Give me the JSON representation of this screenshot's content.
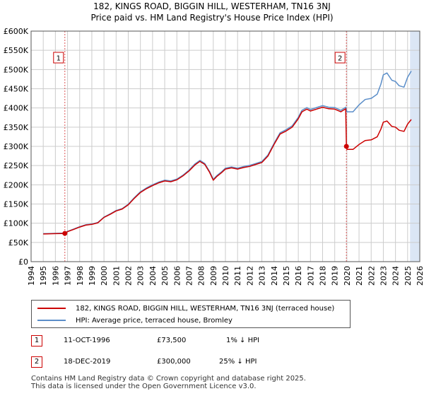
{
  "title_line1": "182, KINGS ROAD, BIGGIN HILL, WESTERHAM, TN16 3NJ",
  "title_line2": "Price paid vs. HM Land Registry's House Price Index (HPI)",
  "colors": {
    "property": "#cc0000",
    "hpi": "#5b8ec9",
    "shade": "#dbe6f5",
    "grid": "#cccccc",
    "vline": "#dd5555"
  },
  "chart_data": {
    "type": "line",
    "title": "182, KINGS ROAD, BIGGIN HILL, WESTERHAM, TN16 3NJ",
    "subtitle": "Price paid vs. HM Land Registry's House Price Index (HPI)",
    "xlabel": "",
    "ylabel": "",
    "xlim": [
      1994,
      2026
    ],
    "ylim": [
      0,
      600000
    ],
    "yticks": [
      0,
      50000,
      100000,
      150000,
      200000,
      250000,
      300000,
      350000,
      400000,
      450000,
      500000,
      550000,
      600000
    ],
    "ytick_labels": [
      "£0",
      "£50K",
      "£100K",
      "£150K",
      "£200K",
      "£250K",
      "£300K",
      "£350K",
      "£400K",
      "£450K",
      "£500K",
      "£550K",
      "£600K"
    ],
    "xticks": [
      1994,
      1995,
      1996,
      1997,
      1998,
      1999,
      2000,
      2001,
      2002,
      2003,
      2004,
      2005,
      2006,
      2007,
      2008,
      2009,
      2010,
      2011,
      2012,
      2013,
      2014,
      2015,
      2016,
      2017,
      2018,
      2019,
      2020,
      2021,
      2022,
      2023,
      2024,
      2025,
      2026
    ],
    "xtick_labels": [
      "1994",
      "1995",
      "1996",
      "1997",
      "1998",
      "1999",
      "2000",
      "2001",
      "2002",
      "2003",
      "2004",
      "2005",
      "2006",
      "2007",
      "2008",
      "2009",
      "2010",
      "2011",
      "2012",
      "2013",
      "2014",
      "2015",
      "2016",
      "2017",
      "2018",
      "2019",
      "2020",
      "2021",
      "2022",
      "2023",
      "2024",
      "2025",
      "2026"
    ],
    "grid": true,
    "shaded_range": [
      2025.2,
      2026
    ],
    "series": [
      {
        "name": "182, KINGS ROAD, BIGGIN HILL, WESTERHAM, TN16 3NJ (terraced house)",
        "x": [
          1995.0,
          1995.5,
          1996.0,
          1996.5,
          1996.78,
          1997.0,
          1997.5,
          1998.0,
          1998.5,
          1999.0,
          1999.5,
          2000.0,
          2000.5,
          2001.0,
          2001.5,
          2002.0,
          2002.5,
          2003.0,
          2003.5,
          2004.0,
          2004.5,
          2005.0,
          2005.5,
          2006.0,
          2006.5,
          2007.0,
          2007.5,
          2007.9,
          2008.3,
          2008.7,
          2009.0,
          2009.3,
          2009.7,
          2010.0,
          2010.5,
          2011.0,
          2011.5,
          2012.0,
          2012.5,
          2013.0,
          2013.5,
          2014.0,
          2014.5,
          2015.0,
          2015.5,
          2016.0,
          2016.3,
          2016.7,
          2017.0,
          2017.5,
          2018.0,
          2018.5,
          2019.0,
          2019.5,
          2019.9,
          2019.96,
          2020.0,
          2020.5,
          2021.0,
          2021.5,
          2022.0,
          2022.5,
          2022.8,
          2023.0,
          2023.3,
          2023.7,
          2024.0,
          2024.3,
          2024.7,
          2025.0,
          2025.3
        ],
        "values": [
          72000,
          72500,
          72800,
          73200,
          73500,
          78000,
          84000,
          90000,
          95000,
          97000,
          101000,
          115000,
          123000,
          132000,
          137000,
          148000,
          165000,
          180000,
          190000,
          198000,
          205000,
          210000,
          208000,
          213000,
          223000,
          236000,
          252000,
          261000,
          253000,
          232000,
          212000,
          222000,
          232000,
          241000,
          244000,
          241000,
          245000,
          248000,
          253000,
          258000,
          275000,
          305000,
          332000,
          340000,
          350000,
          372000,
          390000,
          397000,
          392000,
          397000,
          402000,
          398000,
          397000,
          390000,
          398000,
          300000,
          292000,
          292000,
          305000,
          315000,
          317000,
          325000,
          345000,
          363000,
          366000,
          352000,
          350000,
          342000,
          339000,
          358000,
          370000
        ]
      },
      {
        "name": "HPI: Average price, terraced house, Bromley",
        "x": [
          1995.0,
          1995.5,
          1996.0,
          1996.5,
          1996.78,
          1997.0,
          1997.5,
          1998.0,
          1998.5,
          1999.0,
          1999.5,
          2000.0,
          2000.5,
          2001.0,
          2001.5,
          2002.0,
          2002.5,
          2003.0,
          2003.5,
          2004.0,
          2004.5,
          2005.0,
          2005.5,
          2006.0,
          2006.5,
          2007.0,
          2007.5,
          2007.9,
          2008.3,
          2008.7,
          2009.0,
          2009.3,
          2009.7,
          2010.0,
          2010.5,
          2011.0,
          2011.5,
          2012.0,
          2012.5,
          2013.0,
          2013.5,
          2014.0,
          2014.5,
          2015.0,
          2015.5,
          2016.0,
          2016.3,
          2016.7,
          2017.0,
          2017.5,
          2018.0,
          2018.5,
          2019.0,
          2019.5,
          2019.9,
          2020.0,
          2020.5,
          2021.0,
          2021.5,
          2022.0,
          2022.5,
          2022.8,
          2023.0,
          2023.3,
          2023.7,
          2024.0,
          2024.3,
          2024.7,
          2025.0,
          2025.3
        ],
        "values": [
          72800,
          73200,
          73600,
          74000,
          74300,
          78800,
          84800,
          90900,
          96000,
          98000,
          102000,
          116000,
          124000,
          133000,
          138000,
          149500,
          166500,
          181800,
          191900,
          200000,
          207000,
          212000,
          210000,
          215000,
          225000,
          238000,
          254500,
          263600,
          255500,
          234300,
          214100,
          224200,
          234300,
          243400,
          246400,
          243400,
          247500,
          250500,
          255500,
          260600,
          277800,
          308000,
          335300,
          343400,
          353500,
          375700,
          393900,
          401000,
          395900,
          401000,
          406000,
          402000,
          401000,
          393900,
          402000,
          390000,
          390000,
          408000,
          422000,
          425000,
          436000,
          462000,
          486000,
          491000,
          472000,
          469000,
          458000,
          454000,
          480000,
          496000
        ]
      }
    ],
    "annotations": [
      {
        "label": "1",
        "x": 1996.78,
        "y": 73500
      },
      {
        "label": "2",
        "x": 2019.96,
        "y": 300000
      }
    ]
  },
  "legend": {
    "property_label": "182, KINGS ROAD, BIGGIN HILL, WESTERHAM, TN16 3NJ (terraced house)",
    "hpi_label": "HPI: Average price, terraced house, Bromley"
  },
  "transactions": [
    {
      "marker": "1",
      "date": "11-OCT-1996",
      "price": "£73,500",
      "hpi_diff": "1% ↓ HPI"
    },
    {
      "marker": "2",
      "date": "18-DEC-2019",
      "price": "£300,000",
      "hpi_diff": "25% ↓ HPI"
    }
  ],
  "footer_line1": "Contains HM Land Registry data © Crown copyright and database right 2025.",
  "footer_line2": "This data is licensed under the Open Government Licence v3.0."
}
